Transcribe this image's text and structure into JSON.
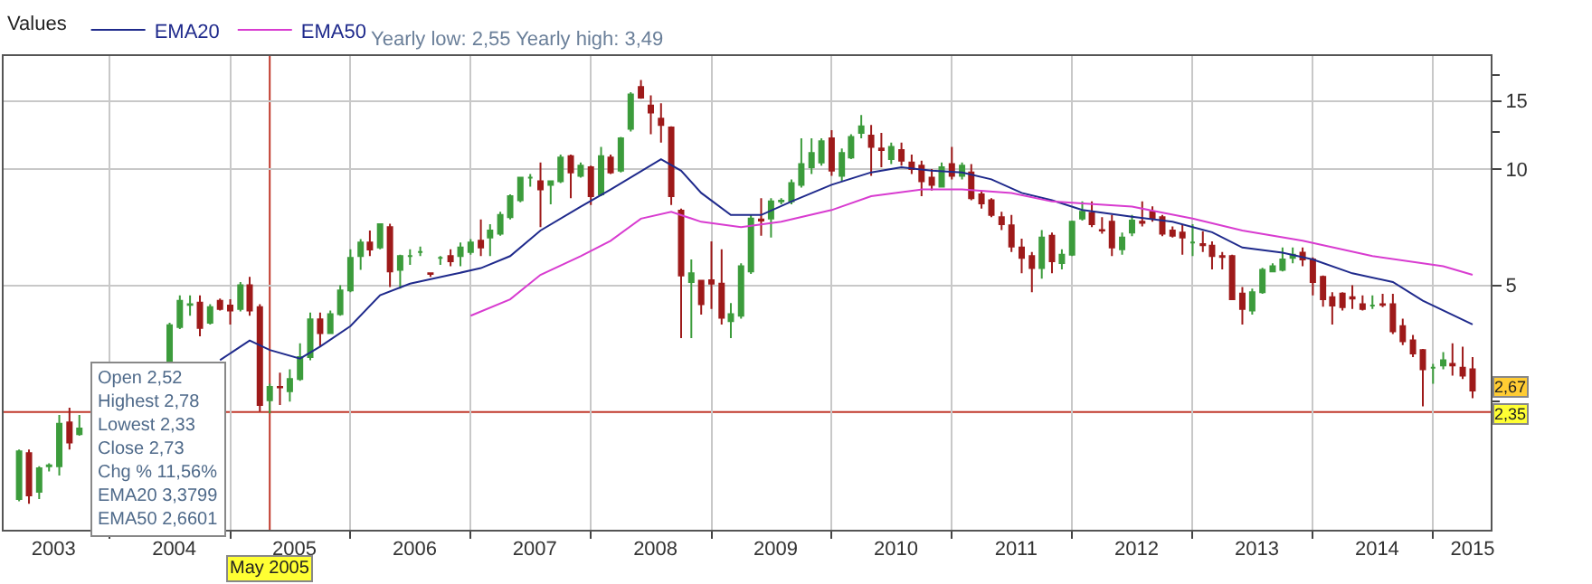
{
  "chart_data": {
    "type": "candlestick",
    "legend_title": "Values",
    "legend": "top left",
    "grid": true,
    "log": "y",
    "colors": [
      "#3c9c3c",
      "#9e1a1a",
      "#3c9c3c",
      "#3c9c3c",
      "#3c9c3c",
      "#9e1a1a",
      "#3c9c3c",
      "#3c9c3c",
      "#3c9c3c",
      "#3c9c3c",
      "#9e1a1a",
      "#3c9c3c",
      "#9e1a1a",
      "#9e1a1a",
      "#3c9c3c",
      "#9e1a1a",
      "#9e1a1a",
      "#3c9c3c",
      "#9e1a1a",
      "#3c9c3c",
      "#3c9c3c",
      "#3c9c3c",
      "#9e1a1a",
      "#3c9c3c",
      "#3c9c3c",
      "#3c9c3c",
      "#3c9c3c",
      "#9e1a1a",
      "#3c9c3c",
      "#9e1a1a",
      "#3c9c3c",
      "#3c9c3c",
      "#3c9c3c",
      "#9e1a1a",
      "#3c9c3c",
      "#9e1a1a",
      "#3c9c3c",
      "#3c9c3c",
      "#9e1a1a",
      "#3c9c3c",
      "#3c9c3c",
      "#3c9c3c",
      "#3c9c3c",
      "#3c9c3c",
      "#9e1a1a",
      "#3c9c3c",
      "#3c9c3c",
      "#9e1a1a",
      "#3c9c3c",
      "#9e1a1a",
      "#3c9c3c",
      "#9e1a1a",
      "#3c9c3c",
      "#3c9c3c",
      "#9e1a1a",
      "#9e1a1a",
      "#9e1a1a",
      "#9e1a1a",
      "#9e1a1a",
      "#3c9c3c",
      "#9e1a1a",
      "#9e1a1a",
      "#9e1a1a",
      "#3c9c3c",
      "#3c9c3c",
      "#3c9c3c",
      "#9e1a1a",
      "#3c9c3c",
      "#3c9c3c",
      "#3c9c3c",
      "#3c9c3c",
      "#3c9c3c",
      "#3c9c3c",
      "#9e1a1a",
      "#3c9c3c",
      "#3c9c3c",
      "#3c9c3c",
      "#9e1a1a",
      "#9e1a1a",
      "#3c9c3c",
      "#9e1a1a",
      "#9e1a1a",
      "#9e1a1a",
      "#9e1a1a",
      "#3c9c3c",
      "#9e1a1a",
      "#3c9c3c",
      "#9e1a1a",
      "#9e1a1a",
      "#9e1a1a",
      "#9e1a1a",
      "#9e1a1a",
      "#9e1a1a",
      "#9e1a1a",
      "#3c9c3c",
      "#9e1a1a",
      "#3c9c3c",
      "#3c9c3c",
      "#3c9c3c",
      "#9e1a1a",
      "#9e1a1a",
      "#9e1a1a",
      "#3c9c3c",
      "#3c9c3c",
      "#9e1a1a",
      "#9e1a1a",
      "#9e1a1a",
      "#9e1a1a",
      "#9e1a1a",
      "#3c9c3c",
      "#9e1a1a",
      "#9e1a1a",
      "#9e1a1a",
      "#9e1a1a",
      "#9e1a1a",
      "#3c9c3c",
      "#3c9c3c",
      "#3c9c3c",
      "#3c9c3c",
      "#3c9c3c",
      "#9e1a1a",
      "#9e1a1a",
      "#9e1a1a",
      "#9e1a1a",
      "#9e1a1a",
      "#9e1a1a",
      "#9e1a1a",
      "#3c9c3c",
      "#9e1a1a",
      "#9e1a1a",
      "#9e1a1a",
      "#9e1a1a",
      "#9e1a1a",
      "#3c9c3c",
      "#3c9c3c",
      "#9e1a1a",
      "#9e1a1a",
      "#9e1a1a"
    ],
    "x": [
      "2003-04",
      "2003-05",
      "2003-06",
      "2003-07",
      "2003-08",
      "2003-09",
      "2003-10",
      "2004-07",
      "2004-08",
      "2004-09",
      "2004-10",
      "2004-11",
      "2004-12",
      "2005-01",
      "2005-02",
      "2005-03",
      "2005-04",
      "2005-05",
      "2005-06",
      "2005-07",
      "2005-08",
      "2005-09",
      "2005-10",
      "2005-11",
      "2005-12",
      "2006-01",
      "2006-02",
      "2006-03",
      "2006-04",
      "2006-05",
      "2006-06",
      "2006-07",
      "2006-08",
      "2006-09",
      "2006-10",
      "2006-11",
      "2006-12",
      "2007-01",
      "2007-02",
      "2007-03",
      "2007-04",
      "2007-05",
      "2007-06",
      "2007-07",
      "2007-08",
      "2007-09",
      "2007-10",
      "2007-11",
      "2007-12",
      "2008-01",
      "2008-02",
      "2008-03",
      "2008-04",
      "2008-05",
      "2008-06",
      "2008-07",
      "2008-08",
      "2008-09",
      "2008-10",
      "2008-11",
      "2008-12",
      "2009-01",
      "2009-02",
      "2009-03",
      "2009-04",
      "2009-05",
      "2009-06",
      "2009-07",
      "2009-08",
      "2009-09",
      "2009-10",
      "2009-11",
      "2009-12",
      "2010-01",
      "2010-02",
      "2010-03",
      "2010-04",
      "2010-05",
      "2010-06",
      "2010-07",
      "2010-08",
      "2010-09",
      "2010-10",
      "2010-11",
      "2010-12",
      "2011-01",
      "2011-02",
      "2011-03",
      "2011-04",
      "2011-05",
      "2011-06",
      "2011-07",
      "2011-08",
      "2011-09",
      "2011-10",
      "2011-11",
      "2011-12",
      "2012-01",
      "2012-02",
      "2012-03",
      "2012-04",
      "2012-05",
      "2012-06",
      "2012-07",
      "2012-08",
      "2012-09",
      "2012-10",
      "2012-11",
      "2012-12",
      "2013-01",
      "2013-02",
      "2013-03",
      "2013-04",
      "2013-05",
      "2013-06",
      "2013-07",
      "2013-08",
      "2013-09",
      "2013-10",
      "2013-11",
      "2013-12",
      "2014-01",
      "2014-02",
      "2014-03",
      "2014-04",
      "2014-05",
      "2014-06",
      "2014-07",
      "2014-08",
      "2014-09",
      "2014-10",
      "2014-11",
      "2014-12",
      "2015-01",
      "2015-02",
      "2015-03",
      "2015-04",
      "2015-05"
    ],
    "ohlc": [
      [
        1.4,
        1.88,
        1.38,
        1.86
      ],
      [
        1.84,
        1.88,
        1.36,
        1.43
      ],
      [
        1.46,
        1.7,
        1.4,
        1.68
      ],
      [
        1.7,
        1.73,
        1.65,
        1.71
      ],
      [
        1.7,
        2.31,
        1.61,
        2.19
      ],
      [
        2.21,
        2.41,
        1.88,
        1.96
      ],
      [
        2.06,
        2.31,
        2.04,
        2.13
      ],
      [
        3.18,
        4.0,
        3.1,
        3.94
      ],
      [
        3.9,
        4.71,
        3.85,
        4.56
      ],
      [
        4.45,
        4.71,
        4.17,
        4.47
      ],
      [
        4.51,
        4.71,
        3.69,
        3.88
      ],
      [
        4.0,
        4.47,
        3.96,
        4.39
      ],
      [
        4.56,
        4.62,
        4.3,
        4.34
      ],
      [
        4.43,
        4.6,
        3.96,
        4.3
      ],
      [
        4.34,
        5.1,
        4.28,
        5.0
      ],
      [
        5.0,
        5.26,
        4.17,
        4.3
      ],
      [
        4.39,
        4.47,
        2.36,
        2.45
      ],
      [
        2.52,
        2.78,
        2.33,
        2.73
      ],
      [
        2.73,
        2.97,
        2.45,
        2.72
      ],
      [
        2.66,
        3.03,
        2.5,
        2.86
      ],
      [
        2.86,
        3.54,
        2.83,
        3.26
      ],
      [
        3.26,
        4.25,
        3.2,
        4.08
      ],
      [
        4.08,
        4.25,
        3.47,
        3.76
      ],
      [
        3.76,
        4.3,
        3.74,
        4.21
      ],
      [
        4.21,
        5.0,
        4.17,
        4.85
      ],
      [
        4.85,
        6.2,
        4.8,
        5.89
      ],
      [
        5.95,
        6.58,
        5.48,
        6.45
      ],
      [
        6.45,
        6.93,
        5.95,
        6.19
      ],
      [
        6.26,
        7.22,
        6.2,
        7.2
      ],
      [
        7.07,
        7.22,
        4.95,
        5.43
      ],
      [
        5.48,
        6.0,
        4.9,
        5.95
      ],
      [
        5.95,
        6.2,
        5.65,
        5.95
      ],
      [
        6.1,
        6.3,
        5.95,
        6.1
      ],
      [
        5.37,
        5.37,
        5.26,
        5.35
      ],
      [
        5.89,
        5.95,
        5.65,
        5.89
      ],
      [
        5.95,
        6.2,
        5.6,
        5.77
      ],
      [
        5.95,
        6.45,
        5.6,
        6.26
      ],
      [
        6.1,
        6.58,
        6.0,
        6.45
      ],
      [
        6.52,
        7.4,
        5.95,
        6.26
      ],
      [
        6.65,
        7.2,
        5.95,
        6.93
      ],
      [
        6.8,
        7.75,
        6.72,
        7.6
      ],
      [
        7.5,
        8.6,
        7.4,
        8.5
      ],
      [
        8.3,
        9.55,
        8.2,
        9.5
      ],
      [
        9.5,
        9.7,
        9.0,
        9.5
      ],
      [
        9.3,
        10.4,
        7.07,
        8.85
      ],
      [
        9.1,
        9.3,
        8.1,
        9.3
      ],
      [
        9.3,
        10.9,
        9.2,
        10.7
      ],
      [
        10.8,
        10.9,
        8.4,
        9.8
      ],
      [
        9.6,
        10.4,
        9.5,
        10.2
      ],
      [
        10.1,
        10.2,
        8.07,
        8.5
      ],
      [
        8.6,
        11.4,
        8.5,
        10.8
      ],
      [
        10.7,
        10.9,
        9.7,
        9.8
      ],
      [
        9.9,
        12.1,
        9.8,
        12.0
      ],
      [
        12.7,
        15.8,
        12.5,
        15.6
      ],
      [
        16.3,
        17.0,
        15.2,
        15.3
      ],
      [
        14.6,
        15.5,
        12.3,
        14.0
      ],
      [
        13.5,
        14.8,
        11.7,
        13.0
      ],
      [
        12.8,
        12.9,
        8.07,
        8.5
      ],
      [
        7.8,
        7.9,
        3.65,
        5.3
      ],
      [
        5.1,
        5.83,
        3.65,
        5.37
      ],
      [
        5.14,
        5.15,
        4.2,
        4.47
      ],
      [
        5.15,
        6.5,
        4.34,
        5.05
      ],
      [
        5.05,
        6.2,
        3.96,
        4.12
      ],
      [
        4.04,
        4.5,
        3.65,
        4.21
      ],
      [
        4.17,
        5.7,
        4.1,
        5.6
      ],
      [
        5.43,
        7.6,
        5.35,
        7.44
      ],
      [
        7.4,
        8.4,
        6.72,
        7.35
      ],
      [
        7.44,
        8.4,
        6.65,
        8.24
      ],
      [
        8.24,
        8.4,
        8.1,
        8.28
      ],
      [
        8.24,
        9.4,
        8.1,
        9.2
      ],
      [
        9.1,
        12.0,
        8.95,
        10.3
      ],
      [
        10.1,
        12.0,
        9.7,
        11.0
      ],
      [
        10.4,
        12.0,
        10.2,
        11.8
      ],
      [
        12.0,
        12.6,
        9.6,
        9.9
      ],
      [
        9.6,
        11.3,
        9.3,
        11.0
      ],
      [
        10.7,
        12.3,
        10.6,
        12.1
      ],
      [
        12.4,
        13.8,
        12.0,
        12.9
      ],
      [
        12.2,
        13.0,
        9.6,
        11.4
      ],
      [
        11.3,
        12.4,
        10.1,
        11.2
      ],
      [
        10.6,
        11.7,
        10.3,
        11.4
      ],
      [
        11.2,
        11.7,
        10.2,
        10.5
      ],
      [
        10.4,
        10.9,
        9.7,
        10.0
      ],
      [
        10.2,
        10.5,
        8.5,
        9.3
      ],
      [
        9.5,
        10.0,
        8.8,
        9.1
      ],
      [
        9.0,
        10.4,
        8.95,
        10.1
      ],
      [
        10.3,
        11.4,
        9.4,
        9.6
      ],
      [
        9.6,
        10.4,
        9.4,
        10.2
      ],
      [
        9.8,
        10.3,
        8.3,
        8.4
      ],
      [
        8.6,
        8.8,
        7.9,
        8.15
      ],
      [
        8.3,
        8.4,
        7.5,
        7.6
      ],
      [
        7.5,
        7.75,
        6.95,
        7.2
      ],
      [
        7.15,
        7.6,
        6.1,
        6.3
      ],
      [
        6.26,
        6.6,
        5.37,
        5.89
      ],
      [
        5.95,
        6.1,
        4.8,
        5.54
      ],
      [
        5.54,
        6.95,
        5.2,
        6.65
      ],
      [
        6.72,
        6.85,
        5.37,
        5.77
      ],
      [
        5.71,
        6.2,
        5.5,
        6.0
      ],
      [
        6.0,
        7.35,
        5.95,
        7.3
      ],
      [
        7.44,
        8.24,
        7.35,
        7.75
      ],
      [
        7.7,
        8.24,
        7.07,
        7.2
      ],
      [
        6.95,
        7.5,
        6.8,
        6.93
      ],
      [
        7.3,
        7.6,
        5.95,
        6.26
      ],
      [
        6.2,
        6.85,
        6.0,
        6.65
      ],
      [
        6.85,
        7.6,
        6.7,
        7.35
      ],
      [
        7.3,
        8.24,
        7.1,
        7.25
      ],
      [
        7.75,
        8.0,
        7.3,
        7.44
      ],
      [
        7.5,
        7.6,
        6.7,
        6.8
      ],
      [
        6.93,
        7.1,
        6.65,
        6.72
      ],
      [
        6.85,
        7.2,
        6.0,
        6.65
      ],
      [
        6.45,
        7.2,
        5.95,
        6.45
      ],
      [
        6.39,
        6.9,
        6.1,
        6.35
      ],
      [
        6.33,
        6.5,
        5.5,
        5.95
      ],
      [
        5.95,
        6.1,
        5.5,
        5.92
      ],
      [
        5.95,
        6.0,
        4.58,
        4.6
      ],
      [
        4.76,
        4.95,
        3.96,
        4.34
      ],
      [
        4.3,
        4.9,
        4.2,
        4.8
      ],
      [
        4.8,
        5.55,
        4.75,
        5.48
      ],
      [
        5.43,
        5.7,
        5.4,
        5.6
      ],
      [
        5.48,
        6.26,
        5.43,
        5.83
      ],
      [
        5.89,
        6.26,
        5.7,
        6.0
      ],
      [
        6.07,
        6.26,
        5.6,
        5.83
      ],
      [
        5.83,
        5.9,
        4.71,
        5.1
      ],
      [
        5.26,
        5.3,
        4.4,
        4.6
      ],
      [
        4.66,
        4.8,
        3.96,
        4.43
      ],
      [
        4.76,
        4.8,
        4.3,
        4.39
      ],
      [
        4.66,
        5.0,
        4.34,
        4.62
      ],
      [
        4.47,
        4.71,
        4.3,
        4.34
      ],
      [
        4.43,
        4.71,
        4.34,
        4.43
      ],
      [
        4.47,
        4.75,
        4.39,
        4.45
      ],
      [
        4.47,
        4.75,
        3.74,
        3.8
      ],
      [
        3.92,
        4.1,
        3.5,
        3.58
      ],
      [
        3.6,
        3.72,
        3.26,
        3.33
      ],
      [
        3.4,
        3.42,
        2.43,
        3.03
      ],
      [
        3.06,
        3.13,
        2.78,
        3.06
      ],
      [
        3.1,
        3.36,
        3.03,
        3.2
      ],
      [
        3.13,
        3.54,
        2.92,
        3.1
      ],
      [
        3.06,
        3.47,
        2.86,
        2.92
      ],
      [
        3.03,
        3.26,
        2.55,
        2.67
      ]
    ],
    "series": [
      {
        "name": "EMA20",
        "type": "line",
        "color": "#1f2a8c",
        "x": [
          "2004-12",
          "2005-03",
          "2005-05",
          "2005-08",
          "2005-10",
          "2006-01",
          "2006-04",
          "2006-07",
          "2006-11",
          "2007-02",
          "2007-05",
          "2007-08",
          "2007-12",
          "2008-03",
          "2008-08",
          "2008-10",
          "2008-12",
          "2009-03",
          "2009-06",
          "2009-09",
          "2010-01",
          "2010-05",
          "2010-08",
          "2010-11",
          "2011-02",
          "2011-05",
          "2011-08",
          "2011-11",
          "2012-02",
          "2012-07",
          "2012-11",
          "2013-03",
          "2013-06",
          "2013-10",
          "2014-01",
          "2014-05",
          "2014-09",
          "2014-12",
          "2015-05"
        ],
        "values": [
          3.2,
          3.6,
          3.4,
          3.23,
          3.47,
          3.92,
          4.71,
          5.05,
          5.32,
          5.54,
          5.95,
          6.93,
          7.99,
          8.85,
          10.6,
          9.9,
          8.67,
          7.6,
          7.6,
          8.24,
          9.1,
          9.8,
          10.1,
          9.9,
          9.8,
          9.4,
          8.67,
          8.3,
          7.83,
          7.52,
          7.3,
          6.86,
          6.26,
          6.07,
          5.83,
          5.37,
          5.1,
          4.56,
          3.96
        ]
      },
      {
        "name": "EMA50",
        "type": "line",
        "color": "#d83cd0",
        "x": [
          "2007-01",
          "2007-05",
          "2007-08",
          "2007-12",
          "2008-03",
          "2008-06",
          "2008-09",
          "2008-12",
          "2009-04",
          "2009-08",
          "2010-01",
          "2010-05",
          "2010-10",
          "2011-02",
          "2011-07",
          "2011-11",
          "2012-02",
          "2012-07",
          "2013-01",
          "2013-06",
          "2013-12",
          "2014-07",
          "2015-02",
          "2015-05"
        ],
        "values": [
          4.17,
          4.6,
          5.32,
          5.95,
          6.52,
          7.44,
          7.75,
          7.3,
          7.07,
          7.3,
          7.83,
          8.5,
          8.85,
          8.85,
          8.67,
          8.24,
          8.15,
          7.99,
          7.44,
          6.93,
          6.52,
          5.95,
          5.6,
          5.32
        ]
      }
    ],
    "xlim": [
      "2003-02-13",
      "2015-06-25"
    ],
    "xticks": [
      {
        "value": "2003-07-15",
        "label": "2003"
      },
      {
        "value": "2004-07-15",
        "label": "2004"
      },
      {
        "value": "2005-07-15",
        "label": "2005"
      },
      {
        "value": "2006-07-15",
        "label": "2006"
      },
      {
        "value": "2007-07-15",
        "label": "2007"
      },
      {
        "value": "2008-07-15",
        "label": "2008"
      },
      {
        "value": "2009-07-15",
        "label": "2009"
      },
      {
        "value": "2010-07-15",
        "label": "2010"
      },
      {
        "value": "2011-07-15",
        "label": "2011"
      },
      {
        "value": "2012-07-15",
        "label": "2012"
      },
      {
        "value": "2013-07-15",
        "label": "2013"
      },
      {
        "value": "2014-07-15",
        "label": "2014"
      },
      {
        "value": "2015-05-01",
        "label": "2015"
      },
      {
        "value": "2004-01-01",
        "label": null
      },
      {
        "value": "2005-01-01",
        "label": null
      },
      {
        "value": "2006-01-01",
        "label": null
      },
      {
        "value": "2007-01-01",
        "label": null
      },
      {
        "value": "2008-01-01",
        "label": null
      },
      {
        "value": "2009-01-01",
        "label": null
      },
      {
        "value": "2010-01-01",
        "label": null
      },
      {
        "value": "2011-01-01",
        "label": null
      },
      {
        "value": "2012-01-01",
        "label": null
      },
      {
        "value": "2013-01-01",
        "label": null
      },
      {
        "value": "2014-01-01",
        "label": null
      },
      {
        "value": "2015-01-01",
        "label": null
      }
    ],
    "ylim": [
      1.165,
      19.6
    ],
    "yticks": [
      {
        "value": 2.5,
        "label": null
      },
      5,
      10,
      {
        "value": 12.5,
        "label": null
      },
      15,
      {
        "value": 17.5,
        "label": null
      }
    ],
    "ref_lines": [
      {
        "axis": "x",
        "value": "2005-05",
        "label": "May 2005",
        "color": "#c0392b"
      },
      {
        "axis": "y",
        "value": 2.35,
        "label": "2,35",
        "color": "#c0392b"
      }
    ],
    "annotations": [
      "Yearly low: 2,55 Yearly high: 3,49",
      "Open 2,52",
      "Highest 2,78",
      "Lowest 2,33",
      "Close 2,73",
      "Chg % 11,56%",
      "EMA20 3,3799",
      "EMA50 2,6601",
      "2,67"
    ]
  }
}
